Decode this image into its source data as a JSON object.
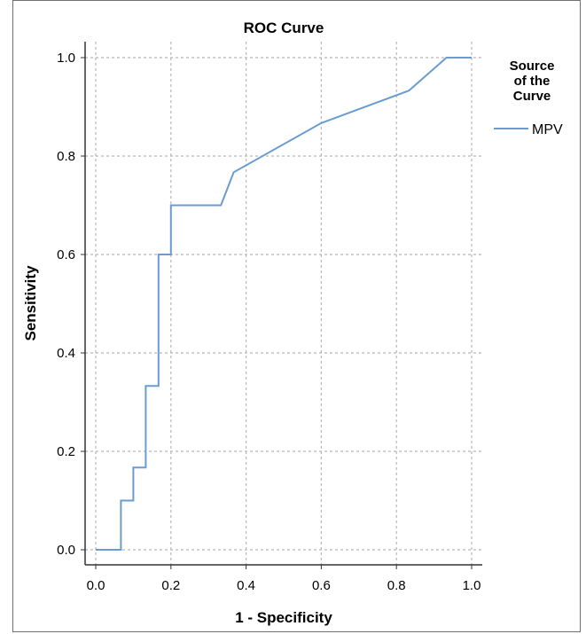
{
  "chart_data": {
    "type": "line",
    "title": "ROC Curve",
    "xlabel": "1 - Specificity",
    "ylabel": "Sensitivity",
    "xlim": [
      0.0,
      1.0
    ],
    "ylim": [
      0.0,
      1.0
    ],
    "xticks": [
      "0.0",
      "0.2",
      "0.4",
      "0.6",
      "0.8",
      "1.0"
    ],
    "yticks": [
      "0.0",
      "0.2",
      "0.4",
      "0.6",
      "0.8",
      "1.0"
    ],
    "grid": true,
    "legend": {
      "title_lines": [
        "Source",
        "of the",
        "Curve"
      ],
      "placement": "right"
    },
    "series": [
      {
        "name": "MPV",
        "color": "#6a9bd4",
        "x": [
          0.0,
          0.067,
          0.067,
          0.1,
          0.1,
          0.133,
          0.133,
          0.167,
          0.167,
          0.2,
          0.2,
          0.333,
          0.367,
          0.6,
          0.833,
          0.933,
          1.0
        ],
        "y": [
          0.0,
          0.0,
          0.1,
          0.1,
          0.167,
          0.167,
          0.333,
          0.333,
          0.6,
          0.6,
          0.7,
          0.7,
          0.767,
          0.867,
          0.933,
          1.0,
          1.0
        ]
      }
    ]
  }
}
